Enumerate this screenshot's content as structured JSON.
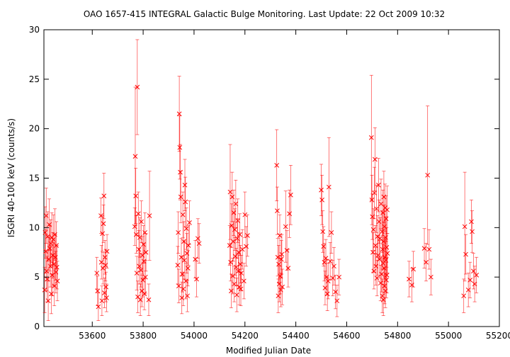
{
  "chart_data": {
    "type": "scatter",
    "title": "OAO 1657-415   INTEGRAL Galactic Bulge Monitoring.  Last Update: 22 Oct 2009 10:32",
    "xlabel": "Modified Julian Date",
    "ylabel": "ISGRI 40-100 keV (counts/s)",
    "xlim": [
      53410,
      55200
    ],
    "ylim": [
      0,
      30
    ],
    "xticks": [
      53600,
      53800,
      54000,
      54200,
      54400,
      54600,
      54800,
      55000,
      55200
    ],
    "yticks": [
      0,
      5,
      10,
      15,
      20,
      25,
      30
    ],
    "grid": false,
    "marker": "x",
    "colors": {
      "points": "#ff0000",
      "errorbars": "#ff0000"
    },
    "points": [
      {
        "x": 53413,
        "y": 3.7,
        "err": 2.3
      },
      {
        "x": 53415,
        "y": 9.5,
        "err": 2.6
      },
      {
        "x": 53417,
        "y": 7.6,
        "err": 2.2
      },
      {
        "x": 53419,
        "y": 11.2,
        "err": 2.8
      },
      {
        "x": 53421,
        "y": 5.6,
        "err": 2.0
      },
      {
        "x": 53423,
        "y": 4.8,
        "err": 2.3
      },
      {
        "x": 53425,
        "y": 9.1,
        "err": 2.5
      },
      {
        "x": 53427,
        "y": 2.6,
        "err": 2.0
      },
      {
        "x": 53429,
        "y": 6.8,
        "err": 2.2
      },
      {
        "x": 53431,
        "y": 10.3,
        "err": 2.6
      },
      {
        "x": 53433,
        "y": 7.9,
        "err": 2.3
      },
      {
        "x": 53435,
        "y": 6.1,
        "err": 2.1
      },
      {
        "x": 53437,
        "y": 8.4,
        "err": 2.4
      },
      {
        "x": 53439,
        "y": 3.3,
        "err": 2.0
      },
      {
        "x": 53441,
        "y": 9.0,
        "err": 2.5
      },
      {
        "x": 53443,
        "y": 5.2,
        "err": 2.1
      },
      {
        "x": 53445,
        "y": 7.2,
        "err": 2.3
      },
      {
        "x": 53447,
        "y": 8.8,
        "err": 2.5
      },
      {
        "x": 53449,
        "y": 6.3,
        "err": 2.2
      },
      {
        "x": 53451,
        "y": 4.1,
        "err": 2.0
      },
      {
        "x": 53453,
        "y": 9.3,
        "err": 2.6
      },
      {
        "x": 53455,
        "y": 7.0,
        "err": 2.3
      },
      {
        "x": 53457,
        "y": 5.5,
        "err": 2.1
      },
      {
        "x": 53459,
        "y": 8.2,
        "err": 2.4
      },
      {
        "x": 53461,
        "y": 6.0,
        "err": 2.2
      },
      {
        "x": 53463,
        "y": 4.6,
        "err": 2.0
      },
      {
        "x": 53618,
        "y": 5.4,
        "err": 1.6
      },
      {
        "x": 53621,
        "y": 3.6,
        "err": 1.5
      },
      {
        "x": 53624,
        "y": 2.0,
        "err": 1.4
      },
      {
        "x": 53634,
        "y": 11.2,
        "err": 1.8
      },
      {
        "x": 53636,
        "y": 6.5,
        "err": 1.7
      },
      {
        "x": 53638,
        "y": 2.6,
        "err": 1.5
      },
      {
        "x": 53640,
        "y": 9.4,
        "err": 1.8
      },
      {
        "x": 53642,
        "y": 5.9,
        "err": 1.6
      },
      {
        "x": 53644,
        "y": 10.4,
        "err": 1.9
      },
      {
        "x": 53646,
        "y": 13.2,
        "err": 2.3
      },
      {
        "x": 53648,
        "y": 3.4,
        "err": 1.5
      },
      {
        "x": 53650,
        "y": 7.0,
        "err": 1.7
      },
      {
        "x": 53652,
        "y": 6.2,
        "err": 1.6
      },
      {
        "x": 53654,
        "y": 4.0,
        "err": 1.5
      },
      {
        "x": 53656,
        "y": 2.9,
        "err": 1.4
      },
      {
        "x": 53658,
        "y": 7.6,
        "err": 1.7
      },
      {
        "x": 53767,
        "y": 10.1,
        "err": 1.9
      },
      {
        "x": 53769,
        "y": 17.2,
        "err": 7.0
      },
      {
        "x": 53771,
        "y": 13.2,
        "err": 2.8
      },
      {
        "x": 53773,
        "y": 9.3,
        "err": 1.9
      },
      {
        "x": 53775,
        "y": 5.4,
        "err": 1.7
      },
      {
        "x": 53777,
        "y": 24.2,
        "err": 4.8
      },
      {
        "x": 53779,
        "y": 3.0,
        "err": 1.6
      },
      {
        "x": 53781,
        "y": 11.4,
        "err": 2.2
      },
      {
        "x": 53783,
        "y": 7.8,
        "err": 1.9
      },
      {
        "x": 53785,
        "y": 6.1,
        "err": 1.8
      },
      {
        "x": 53787,
        "y": 9.0,
        "err": 2.0
      },
      {
        "x": 53789,
        "y": 2.7,
        "err": 1.6
      },
      {
        "x": 53791,
        "y": 5.7,
        "err": 1.7
      },
      {
        "x": 53793,
        "y": 10.6,
        "err": 2.1
      },
      {
        "x": 53795,
        "y": 3.6,
        "err": 1.6
      },
      {
        "x": 53797,
        "y": 7.2,
        "err": 1.9
      },
      {
        "x": 53799,
        "y": 4.7,
        "err": 1.7
      },
      {
        "x": 53801,
        "y": 8.3,
        "err": 1.9
      },
      {
        "x": 53803,
        "y": 6.6,
        "err": 1.8
      },
      {
        "x": 53805,
        "y": 3.3,
        "err": 1.6
      },
      {
        "x": 53807,
        "y": 9.5,
        "err": 2.0
      },
      {
        "x": 53809,
        "y": 5.0,
        "err": 1.7
      },
      {
        "x": 53811,
        "y": 7.5,
        "err": 1.9
      },
      {
        "x": 53825,
        "y": 11.2,
        "err": 4.5
      },
      {
        "x": 53822,
        "y": 2.7,
        "err": 1.6
      },
      {
        "x": 53936,
        "y": 6.2,
        "err": 1.9
      },
      {
        "x": 53938,
        "y": 9.5,
        "err": 2.1
      },
      {
        "x": 53940,
        "y": 4.1,
        "err": 1.7
      },
      {
        "x": 53942,
        "y": 21.5,
        "err": 3.8
      },
      {
        "x": 53944,
        "y": 18.1,
        "err": 3.2
      },
      {
        "x": 53946,
        "y": 15.6,
        "err": 2.8
      },
      {
        "x": 53948,
        "y": 13.1,
        "err": 2.6
      },
      {
        "x": 53950,
        "y": 7.0,
        "err": 1.9
      },
      {
        "x": 53952,
        "y": 2.9,
        "err": 1.6
      },
      {
        "x": 53954,
        "y": 5.3,
        "err": 1.8
      },
      {
        "x": 53956,
        "y": 11.3,
        "err": 2.3
      },
      {
        "x": 53958,
        "y": 3.8,
        "err": 1.7
      },
      {
        "x": 53960,
        "y": 8.6,
        "err": 2.0
      },
      {
        "x": 53962,
        "y": 6.7,
        "err": 1.9
      },
      {
        "x": 53964,
        "y": 14.3,
        "err": 2.6
      },
      {
        "x": 53966,
        "y": 12.6,
        "err": 2.5
      },
      {
        "x": 53968,
        "y": 4.6,
        "err": 1.8
      },
      {
        "x": 53970,
        "y": 9.9,
        "err": 2.1
      },
      {
        "x": 53972,
        "y": 7.4,
        "err": 2.0
      },
      {
        "x": 53974,
        "y": 3.1,
        "err": 1.6
      },
      {
        "x": 53976,
        "y": 5.9,
        "err": 1.8
      },
      {
        "x": 53978,
        "y": 8.2,
        "err": 2.0
      },
      {
        "x": 53982,
        "y": 10.5,
        "err": 2.2
      },
      {
        "x": 54005,
        "y": 6.8,
        "err": 1.9
      },
      {
        "x": 54010,
        "y": 4.8,
        "err": 1.8
      },
      {
        "x": 54015,
        "y": 8.9,
        "err": 2.0
      },
      {
        "x": 54020,
        "y": 8.4,
        "err": 2.0
      },
      {
        "x": 54140,
        "y": 8.2,
        "err": 2.0
      },
      {
        "x": 54142,
        "y": 13.6,
        "err": 4.8
      },
      {
        "x": 54144,
        "y": 6.5,
        "err": 1.9
      },
      {
        "x": 54146,
        "y": 3.6,
        "err": 1.7
      },
      {
        "x": 54148,
        "y": 10.2,
        "err": 2.2
      },
      {
        "x": 54150,
        "y": 13.1,
        "err": 2.5
      },
      {
        "x": 54152,
        "y": 5.1,
        "err": 1.8
      },
      {
        "x": 54154,
        "y": 8.6,
        "err": 2.0
      },
      {
        "x": 54156,
        "y": 11.5,
        "err": 2.3
      },
      {
        "x": 54158,
        "y": 4.3,
        "err": 1.8
      },
      {
        "x": 54160,
        "y": 9.8,
        "err": 2.1
      },
      {
        "x": 54162,
        "y": 7.1,
        "err": 1.9
      },
      {
        "x": 54164,
        "y": 12.4,
        "err": 2.4
      },
      {
        "x": 54166,
        "y": 6.0,
        "err": 1.9
      },
      {
        "x": 54168,
        "y": 3.2,
        "err": 1.7
      },
      {
        "x": 54170,
        "y": 8.9,
        "err": 2.0
      },
      {
        "x": 54172,
        "y": 10.7,
        "err": 2.2
      },
      {
        "x": 54174,
        "y": 5.6,
        "err": 1.8
      },
      {
        "x": 54176,
        "y": 7.5,
        "err": 2.0
      },
      {
        "x": 54178,
        "y": 4.0,
        "err": 1.8
      },
      {
        "x": 54180,
        "y": 9.3,
        "err": 2.1
      },
      {
        "x": 54182,
        "y": 6.3,
        "err": 1.9
      },
      {
        "x": 54184,
        "y": 3.8,
        "err": 1.7
      },
      {
        "x": 54186,
        "y": 5.4,
        "err": 1.8
      },
      {
        "x": 54190,
        "y": 7.8,
        "err": 2.0
      },
      {
        "x": 54196,
        "y": 4.6,
        "err": 1.8
      },
      {
        "x": 54200,
        "y": 11.3,
        "err": 2.3
      },
      {
        "x": 54205,
        "y": 8.1,
        "err": 2.0
      },
      {
        "x": 54210,
        "y": 9.2,
        "err": 2.1
      },
      {
        "x": 54325,
        "y": 16.3,
        "err": 3.6
      },
      {
        "x": 54327,
        "y": 11.7,
        "err": 2.4
      },
      {
        "x": 54329,
        "y": 7.0,
        "err": 1.9
      },
      {
        "x": 54331,
        "y": 3.1,
        "err": 1.7
      },
      {
        "x": 54333,
        "y": 6.3,
        "err": 1.9
      },
      {
        "x": 54335,
        "y": 4.3,
        "err": 1.8
      },
      {
        "x": 54337,
        "y": 9.2,
        "err": 2.1
      },
      {
        "x": 54339,
        "y": 5.1,
        "err": 1.8
      },
      {
        "x": 54341,
        "y": 3.7,
        "err": 1.7
      },
      {
        "x": 54343,
        "y": 6.8,
        "err": 1.9
      },
      {
        "x": 54345,
        "y": 7.3,
        "err": 2.0
      },
      {
        "x": 54347,
        "y": 4.0,
        "err": 1.8
      },
      {
        "x": 54360,
        "y": 10.1,
        "err": 3.6
      },
      {
        "x": 54365,
        "y": 7.7,
        "err": 2.0
      },
      {
        "x": 54370,
        "y": 5.9,
        "err": 1.9
      },
      {
        "x": 54375,
        "y": 11.4,
        "err": 2.4
      },
      {
        "x": 54380,
        "y": 13.3,
        "err": 3.0
      },
      {
        "x": 54500,
        "y": 13.8,
        "err": 2.6
      },
      {
        "x": 54503,
        "y": 12.8,
        "err": 2.5
      },
      {
        "x": 54506,
        "y": 9.6,
        "err": 2.1
      },
      {
        "x": 54509,
        "y": 8.1,
        "err": 2.0
      },
      {
        "x": 54512,
        "y": 6.5,
        "err": 1.9
      },
      {
        "x": 54515,
        "y": 3.9,
        "err": 1.7
      },
      {
        "x": 54518,
        "y": 6.9,
        "err": 1.9
      },
      {
        "x": 54521,
        "y": 5.0,
        "err": 1.8
      },
      {
        "x": 54524,
        "y": 3.3,
        "err": 1.7
      },
      {
        "x": 54527,
        "y": 4.6,
        "err": 1.8
      },
      {
        "x": 54530,
        "y": 14.1,
        "err": 5.0
      },
      {
        "x": 54535,
        "y": 6.6,
        "err": 1.9
      },
      {
        "x": 54540,
        "y": 9.5,
        "err": 2.1
      },
      {
        "x": 54545,
        "y": 4.9,
        "err": 1.8
      },
      {
        "x": 54550,
        "y": 6.1,
        "err": 1.9
      },
      {
        "x": 54556,
        "y": 3.5,
        "err": 1.7
      },
      {
        "x": 54562,
        "y": 2.6,
        "err": 1.6
      },
      {
        "x": 54570,
        "y": 5.0,
        "err": 1.8
      },
      {
        "x": 54697,
        "y": 19.1,
        "err": 6.3
      },
      {
        "x": 54699,
        "y": 12.8,
        "err": 2.5
      },
      {
        "x": 54701,
        "y": 11.1,
        "err": 2.3
      },
      {
        "x": 54703,
        "y": 7.5,
        "err": 2.0
      },
      {
        "x": 54705,
        "y": 9.8,
        "err": 2.1
      },
      {
        "x": 54707,
        "y": 5.6,
        "err": 1.8
      },
      {
        "x": 54709,
        "y": 13.5,
        "err": 2.6
      },
      {
        "x": 54711,
        "y": 16.9,
        "err": 3.2
      },
      {
        "x": 54713,
        "y": 8.2,
        "err": 2.0
      },
      {
        "x": 54715,
        "y": 6.1,
        "err": 1.9
      },
      {
        "x": 54717,
        "y": 11.9,
        "err": 2.4
      },
      {
        "x": 54719,
        "y": 4.9,
        "err": 1.8
      },
      {
        "x": 54721,
        "y": 9.1,
        "err": 2.1
      },
      {
        "x": 54723,
        "y": 7.2,
        "err": 2.0
      },
      {
        "x": 54725,
        "y": 14.3,
        "err": 2.7
      },
      {
        "x": 54727,
        "y": 10.6,
        "err": 2.2
      },
      {
        "x": 54729,
        "y": 6.8,
        "err": 1.9
      },
      {
        "x": 54731,
        "y": 8.9,
        "err": 2.1
      },
      {
        "x": 54733,
        "y": 4.4,
        "err": 1.8
      },
      {
        "x": 54735,
        "y": 12.4,
        "err": 2.5
      },
      {
        "x": 54737,
        "y": 5.3,
        "err": 1.8
      },
      {
        "x": 54739,
        "y": 9.6,
        "err": 2.1
      },
      {
        "x": 54740,
        "y": 3.1,
        "err": 1.7
      },
      {
        "x": 54741,
        "y": 7.8,
        "err": 2.0
      },
      {
        "x": 54742,
        "y": 11.5,
        "err": 2.3
      },
      {
        "x": 54743,
        "y": 6.4,
        "err": 1.9
      },
      {
        "x": 54744,
        "y": 2.7,
        "err": 1.6
      },
      {
        "x": 54745,
        "y": 8.6,
        "err": 2.0
      },
      {
        "x": 54746,
        "y": 13.1,
        "err": 2.6
      },
      {
        "x": 54747,
        "y": 5.9,
        "err": 1.9
      },
      {
        "x": 54748,
        "y": 10.1,
        "err": 2.2
      },
      {
        "x": 54749,
        "y": 4.1,
        "err": 1.8
      },
      {
        "x": 54750,
        "y": 7.0,
        "err": 2.0
      },
      {
        "x": 54751,
        "y": 12.0,
        "err": 2.4
      },
      {
        "x": 54752,
        "y": 3.6,
        "err": 1.7
      },
      {
        "x": 54753,
        "y": 9.0,
        "err": 2.1
      },
      {
        "x": 54754,
        "y": 6.7,
        "err": 1.9
      },
      {
        "x": 54755,
        "y": 10.9,
        "err": 2.3
      },
      {
        "x": 54756,
        "y": 4.7,
        "err": 1.8
      },
      {
        "x": 54757,
        "y": 8.0,
        "err": 2.0
      },
      {
        "x": 54758,
        "y": 5.2,
        "err": 1.8
      },
      {
        "x": 54759,
        "y": 11.8,
        "err": 2.4
      },
      {
        "x": 54760,
        "y": 7.4,
        "err": 2.0
      },
      {
        "x": 54845,
        "y": 4.8,
        "err": 1.8
      },
      {
        "x": 54856,
        "y": 4.2,
        "err": 1.7
      },
      {
        "x": 54862,
        "y": 5.8,
        "err": 1.8
      },
      {
        "x": 54905,
        "y": 7.9,
        "err": 2.0
      },
      {
        "x": 54912,
        "y": 6.5,
        "err": 1.9
      },
      {
        "x": 54918,
        "y": 15.3,
        "err": 7.0
      },
      {
        "x": 54924,
        "y": 7.8,
        "err": 2.0
      },
      {
        "x": 54931,
        "y": 5.0,
        "err": 1.8
      },
      {
        "x": 55060,
        "y": 3.1,
        "err": 1.7
      },
      {
        "x": 55064,
        "y": 10.1,
        "err": 5.5
      },
      {
        "x": 55068,
        "y": 7.3,
        "err": 2.0
      },
      {
        "x": 55078,
        "y": 3.7,
        "err": 1.7
      },
      {
        "x": 55085,
        "y": 4.7,
        "err": 1.8
      },
      {
        "x": 55090,
        "y": 10.6,
        "err": 2.2
      },
      {
        "x": 55093,
        "y": 9.6,
        "err": 2.1
      },
      {
        "x": 55098,
        "y": 5.6,
        "err": 1.8
      },
      {
        "x": 55103,
        "y": 4.3,
        "err": 1.8
      },
      {
        "x": 55110,
        "y": 5.2,
        "err": 1.8
      }
    ]
  }
}
